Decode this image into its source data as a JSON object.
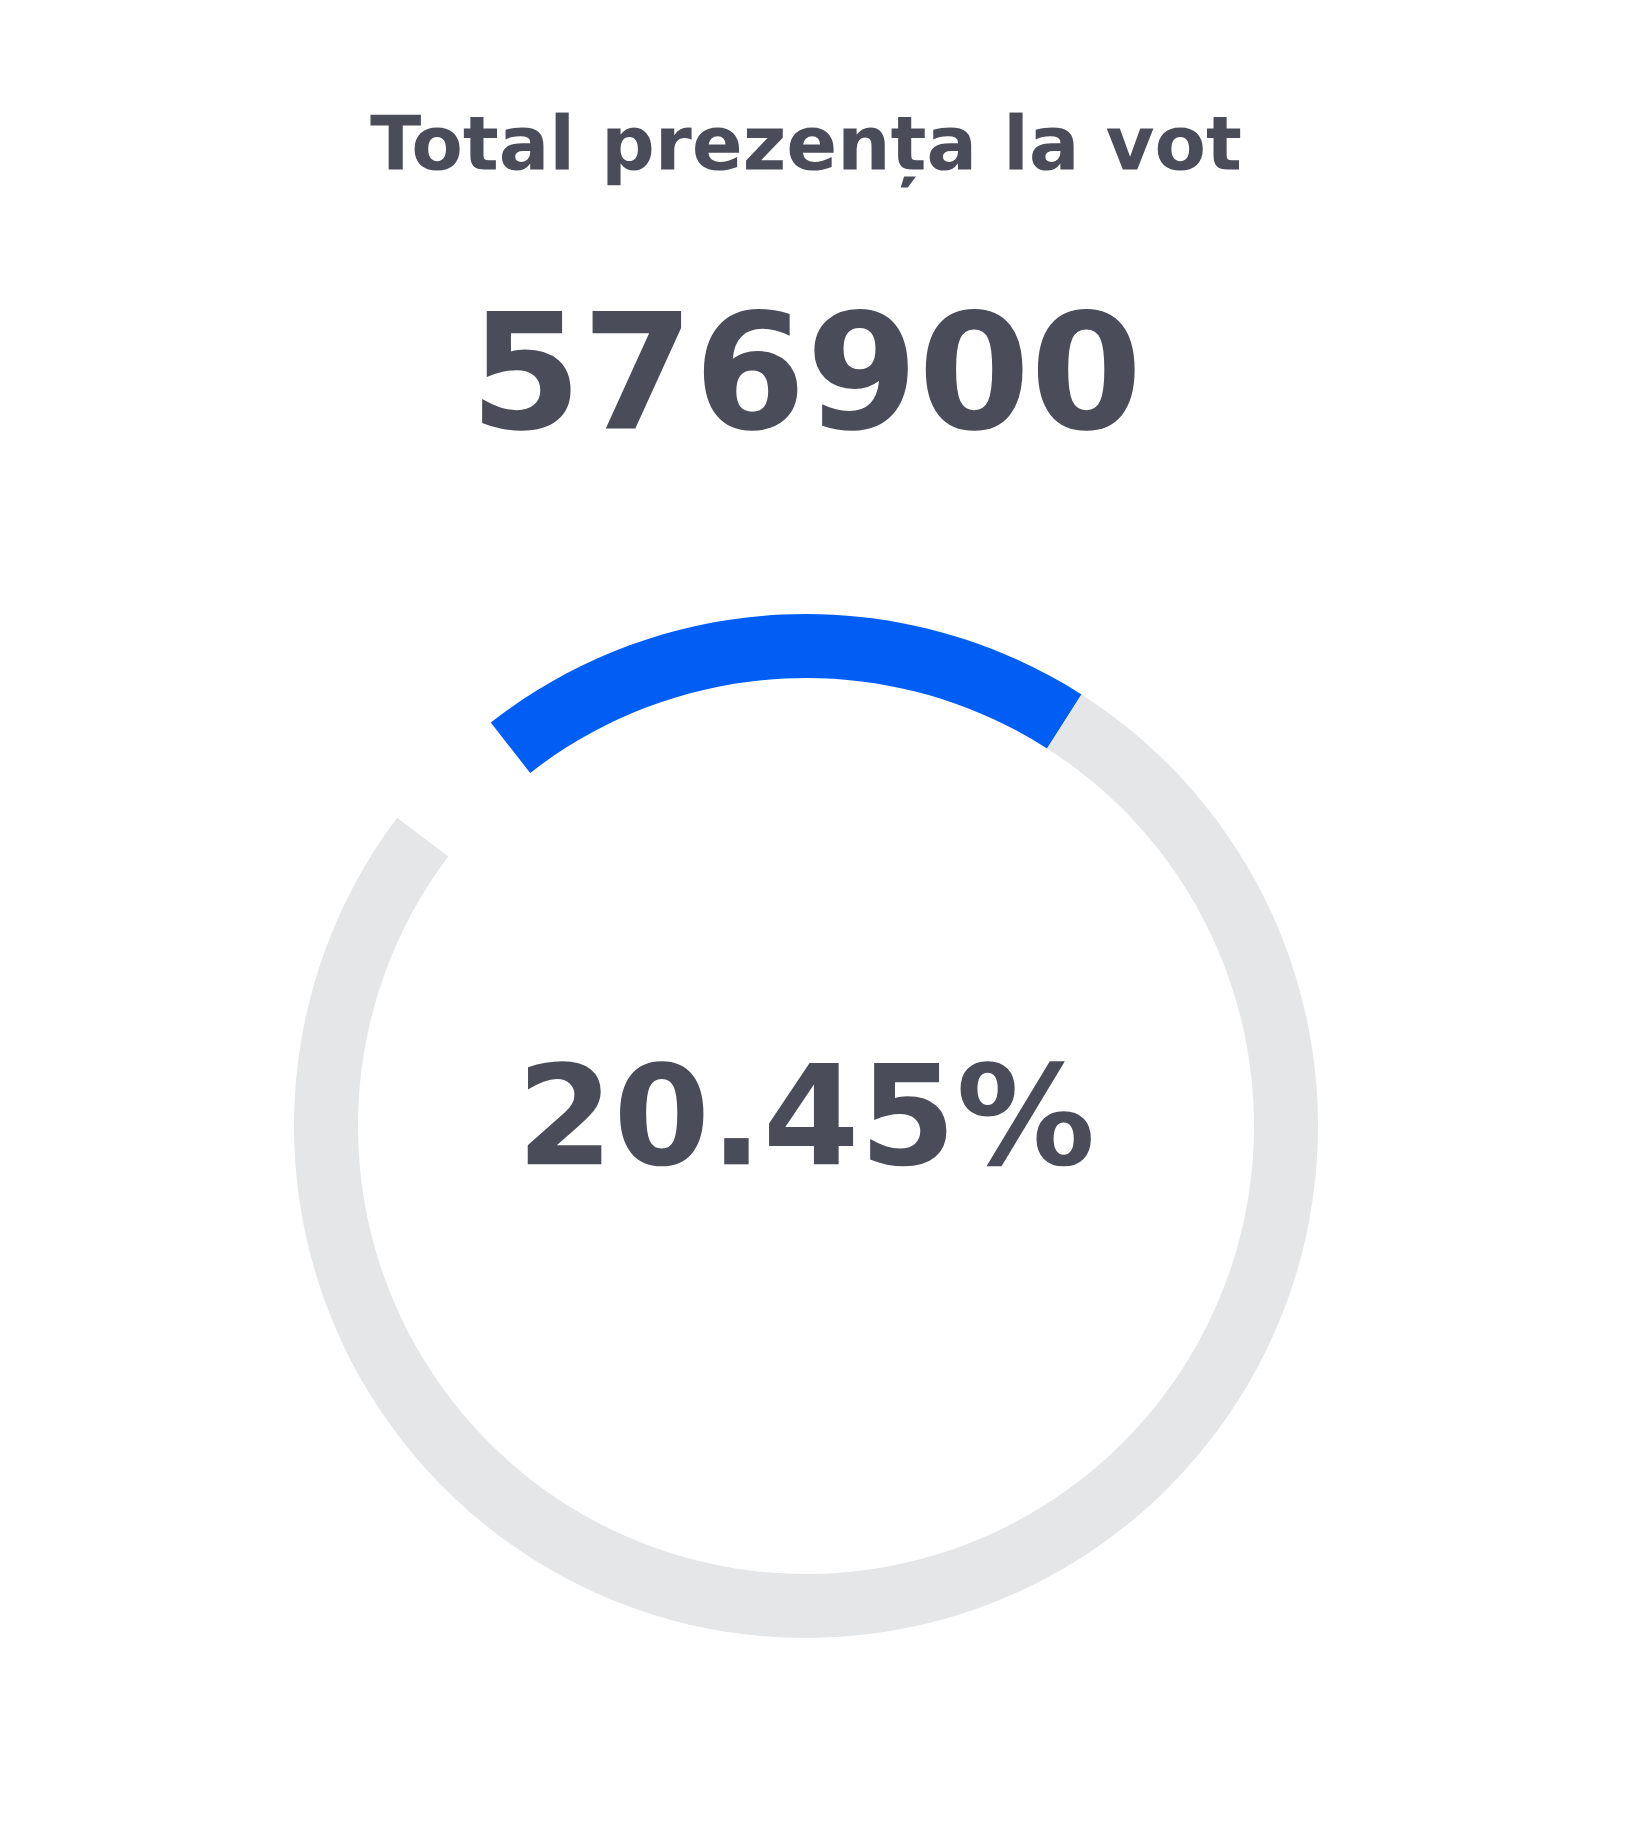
{
  "chart_data": {
    "type": "donut",
    "title": "Total prezența la vot",
    "subtitle": "576900",
    "categories": [
      null,
      null
    ],
    "values": [
      20.45,
      79.55
    ],
    "colors": [
      "#005ef5",
      "#e5e6e8"
    ],
    "annotations": [
      "20.45%"
    ]
  }
}
